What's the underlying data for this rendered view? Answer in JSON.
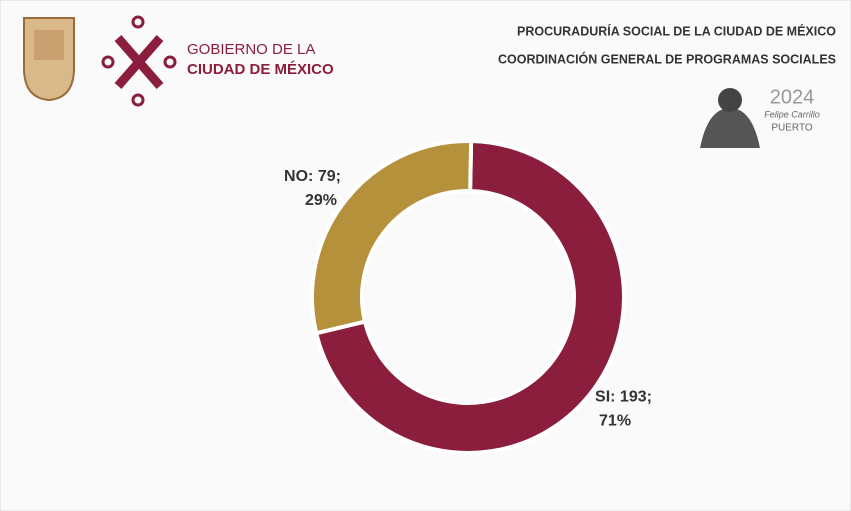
{
  "header": {
    "logo_line1": "GOBIERNO DE LA",
    "logo_line2": "CIUDAD DE MÉXICO",
    "title1": "PROCURADURÍA SOCIAL DE LA CIUDAD DE MÉXICO",
    "title2": "COORDINACIÓN GENERAL DE PROGRAMAS SOCIALES",
    "year": "2024",
    "year_name1": "Felipe Carrillo",
    "year_name2": "PUERTO"
  },
  "chart_data": {
    "type": "donut",
    "values": [
      193,
      79
    ],
    "value_labels": [
      "SI: 193;",
      "NO: 79;"
    ],
    "percent_labels": [
      "71%",
      "29%"
    ],
    "colors": [
      "#8a1e3c",
      "#b5913c"
    ]
  }
}
